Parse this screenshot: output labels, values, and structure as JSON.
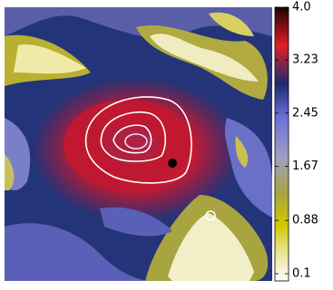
{
  "chart_data": {
    "type": "colormap-image",
    "colorbar": {
      "lim": [
        0.1,
        4.0
      ],
      "ticks": [
        0.1,
        0.88,
        1.67,
        2.45,
        3.23,
        {
          "value": 4,
          "label": "4.0"
        }
      ]
    }
  }
}
